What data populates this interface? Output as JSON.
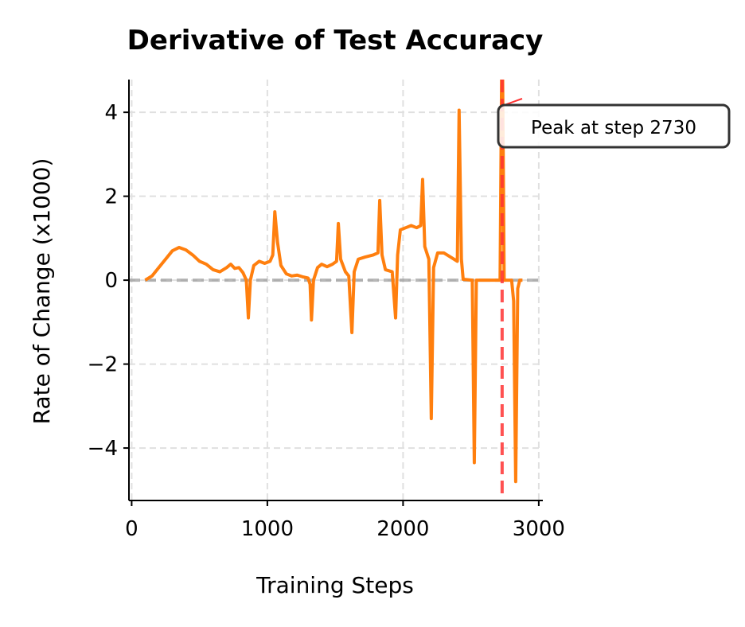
{
  "chart_data": {
    "type": "line",
    "title": "Derivative of Test Accuracy",
    "xlabel": "Training Steps",
    "ylabel": "Rate of Change (x1000)",
    "xlim": [
      -20,
      3030
    ],
    "ylim": [
      -5.25,
      4.78
    ],
    "xticks": [
      0,
      1000,
      2000,
      3000
    ],
    "xtick_labels": [
      "0",
      "1000",
      "2000",
      "3000"
    ],
    "yticks": [
      -4,
      -2,
      0,
      2,
      4
    ],
    "ytick_labels": [
      "−4",
      "−2",
      "0",
      "2",
      "4"
    ],
    "grid": true,
    "zero_line": 0,
    "series": [
      {
        "color": "#ff7f0e",
        "points": [
          [
            100,
            0
          ],
          [
            150,
            0.1
          ],
          [
            200,
            0.3
          ],
          [
            250,
            0.5
          ],
          [
            300,
            0.7
          ],
          [
            350,
            0.78
          ],
          [
            400,
            0.72
          ],
          [
            450,
            0.6
          ],
          [
            500,
            0.45
          ],
          [
            550,
            0.38
          ],
          [
            600,
            0.25
          ],
          [
            650,
            0.2
          ],
          [
            700,
            0.3
          ],
          [
            730,
            0.38
          ],
          [
            760,
            0.28
          ],
          [
            790,
            0.3
          ],
          [
            820,
            0.18
          ],
          [
            845,
            0
          ],
          [
            860,
            -0.9
          ],
          [
            875,
            0
          ],
          [
            900,
            0.35
          ],
          [
            940,
            0.45
          ],
          [
            980,
            0.4
          ],
          [
            1020,
            0.45
          ],
          [
            1040,
            0.6
          ],
          [
            1055,
            1.63
          ],
          [
            1075,
            0.9
          ],
          [
            1100,
            0.35
          ],
          [
            1140,
            0.15
          ],
          [
            1180,
            0.1
          ],
          [
            1220,
            0.12
          ],
          [
            1260,
            0.08
          ],
          [
            1300,
            0.05
          ],
          [
            1315,
            -0.1
          ],
          [
            1325,
            -0.95
          ],
          [
            1340,
            0
          ],
          [
            1370,
            0.3
          ],
          [
            1400,
            0.38
          ],
          [
            1440,
            0.32
          ],
          [
            1480,
            0.38
          ],
          [
            1510,
            0.45
          ],
          [
            1523,
            1.35
          ],
          [
            1540,
            0.5
          ],
          [
            1575,
            0.2
          ],
          [
            1600,
            0.1
          ],
          [
            1623,
            -1.25
          ],
          [
            1640,
            0.2
          ],
          [
            1670,
            0.5
          ],
          [
            1720,
            0.55
          ],
          [
            1780,
            0.6
          ],
          [
            1815,
            0.65
          ],
          [
            1828,
            1.9
          ],
          [
            1845,
            0.6
          ],
          [
            1870,
            0.25
          ],
          [
            1920,
            0.2
          ],
          [
            1945,
            -0.9
          ],
          [
            1960,
            0.6
          ],
          [
            1980,
            1.2
          ],
          [
            2020,
            1.25
          ],
          [
            2060,
            1.3
          ],
          [
            2100,
            1.25
          ],
          [
            2130,
            1.3
          ],
          [
            2144,
            2.4
          ],
          [
            2160,
            0.8
          ],
          [
            2190,
            0.5
          ],
          [
            2208,
            -3.3
          ],
          [
            2225,
            0.3
          ],
          [
            2255,
            0.65
          ],
          [
            2300,
            0.65
          ],
          [
            2350,
            0.55
          ],
          [
            2400,
            0.45
          ],
          [
            2413,
            4.05
          ],
          [
            2430,
            0.5
          ],
          [
            2443,
            0.02
          ],
          [
            2510,
            0
          ],
          [
            2525,
            -4.35
          ],
          [
            2540,
            0
          ],
          [
            2715,
            0
          ],
          [
            2730,
            6.5
          ],
          [
            2745,
            0
          ],
          [
            2800,
            0
          ],
          [
            2815,
            -0.5
          ],
          [
            2830,
            -4.8
          ],
          [
            2845,
            -0.2
          ],
          [
            2860,
            0
          ],
          [
            2880,
            0
          ]
        ]
      }
    ],
    "vline": {
      "x": 2730,
      "color": "#ff3333"
    },
    "annotation": {
      "text": "Peak at step 2730",
      "target_x": 2730,
      "arrow_color": "#ff3333"
    }
  }
}
